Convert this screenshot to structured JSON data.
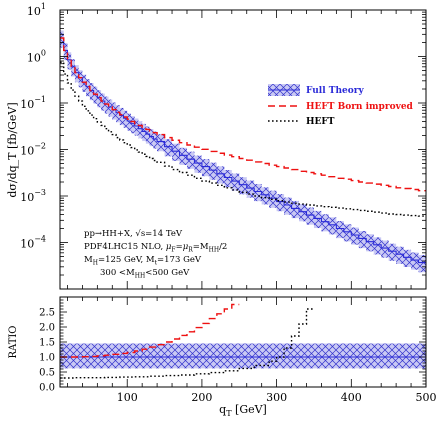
{
  "chart_data": [
    {
      "type": "line",
      "ylabel": "dσ/dq_T [fb/GeV]",
      "xlim": [
        10,
        500
      ],
      "ylim_log10": [
        -5,
        1
      ],
      "y_ticks": [
        {
          "base": "10",
          "exp": "1",
          "log": 1
        },
        {
          "base": "10",
          "exp": "0",
          "log": 0
        },
        {
          "base": "10",
          "exp": "−1",
          "log": -1
        },
        {
          "base": "10",
          "exp": "−2",
          "log": -2
        },
        {
          "base": "10",
          "exp": "−3",
          "log": -3
        },
        {
          "base": "10",
          "exp": "−4",
          "log": -4
        }
      ],
      "legend": {
        "placement": "top-right",
        "entries": [
          {
            "label": "Full Theory",
            "color": "#2a2ad8"
          },
          {
            "label": "HEFT Born improved",
            "color": "#ee1111"
          },
          {
            "label": "HEFT",
            "color": "#000000"
          }
        ]
      },
      "annotations": [
        {
          "type": "txt",
          "t": "pp→HH+X,    √s=14 TeV"
        },
        {
          "type": "pdf",
          "a": "PDF4LHC15 NLO,  ",
          "mu": "μ",
          "sF": "F",
          "mid": "=",
          "sR": "R",
          "eq": "=M",
          "sHH": "HH",
          "tail": "/2"
        },
        {
          "type": "mass",
          "a": "M",
          "sH": "H",
          "b": "=125 GeV,    M",
          "st": "t",
          "c": "=173 GeV"
        },
        {
          "type": "cut",
          "a": "300 <M",
          "sHH": "HH",
          "b": "<500 GeV"
        }
      ],
      "series": [
        {
          "name": "Full Theory",
          "color": "#2a2ad8",
          "x": [
            10,
            15,
            20,
            25,
            30,
            35,
            40,
            45,
            50,
            55,
            60,
            65,
            70,
            75,
            80,
            85,
            90,
            95,
            100,
            105,
            110,
            115,
            120,
            125,
            130,
            135,
            140,
            150,
            160,
            170,
            180,
            190,
            200,
            210,
            220,
            230,
            240,
            250,
            260,
            270,
            280,
            290,
            300,
            310,
            320,
            330,
            340,
            350,
            360,
            370,
            380,
            390,
            400,
            410,
            420,
            430,
            440,
            450,
            460,
            470,
            480,
            490,
            500
          ],
          "y": [
            2.5,
            1.35,
            0.85,
            0.6,
            0.45,
            0.35,
            0.28,
            0.225,
            0.185,
            0.155,
            0.13,
            0.11,
            0.095,
            0.082,
            0.071,
            0.062,
            0.054,
            0.047,
            0.041,
            0.036,
            0.032,
            0.028,
            0.0245,
            0.0215,
            0.019,
            0.0168,
            0.0148,
            0.0115,
            0.0092,
            0.0075,
            0.0062,
            0.0051,
            0.0043,
            0.0036,
            0.003,
            0.0025,
            0.0021,
            0.00175,
            0.00148,
            0.00125,
            0.00106,
            0.0009,
            0.00076,
            0.00064,
            0.00054,
            0.00046,
            0.00039,
            0.00033,
            0.00028,
            0.00024,
            0.0002,
            0.00017,
            0.000145,
            0.000122,
            0.000104,
            8.9e-05,
            7.6e-05,
            6.5e-05,
            5.6e-05,
            4.8e-05,
            4.2e-05,
            3.7e-05,
            3.2e-05
          ],
          "band_rel_up": 1.45,
          "band_rel_down": 0.62
        },
        {
          "name": "HEFT Born improved",
          "color": "#ee1111",
          "x": [
            10,
            15,
            20,
            25,
            30,
            35,
            40,
            45,
            50,
            55,
            60,
            65,
            70,
            75,
            80,
            85,
            90,
            95,
            100,
            105,
            110,
            115,
            120,
            125,
            130,
            135,
            140,
            150,
            160,
            170,
            180,
            190,
            200,
            210,
            220,
            230,
            240,
            250,
            260,
            270,
            280,
            290,
            300,
            310,
            320,
            330,
            340,
            350,
            360,
            370,
            380,
            390,
            400,
            410,
            420,
            430,
            440,
            450,
            460,
            470,
            480,
            490,
            500
          ],
          "y": [
            2.5,
            1.35,
            0.85,
            0.6,
            0.45,
            0.35,
            0.28,
            0.225,
            0.185,
            0.155,
            0.13,
            0.11,
            0.095,
            0.082,
            0.072,
            0.063,
            0.056,
            0.05,
            0.045,
            0.04,
            0.036,
            0.033,
            0.03,
            0.027,
            0.025,
            0.023,
            0.021,
            0.018,
            0.0158,
            0.014,
            0.0125,
            0.0112,
            0.0101,
            0.0091,
            0.0083,
            0.0076,
            0.007,
            0.0064,
            0.0059,
            0.0054,
            0.005,
            0.0046,
            0.0043,
            0.004,
            0.0037,
            0.0034,
            0.0032,
            0.003,
            0.0028,
            0.0026,
            0.0024,
            0.0023,
            0.00215,
            0.002,
            0.0019,
            0.0018,
            0.0017,
            0.0016,
            0.0015,
            0.00145,
            0.00138,
            0.0013,
            0.00125
          ]
        },
        {
          "name": "HEFT",
          "color": "#000000",
          "x": [
            10,
            15,
            20,
            25,
            30,
            35,
            40,
            45,
            50,
            55,
            60,
            65,
            70,
            75,
            80,
            85,
            90,
            95,
            100,
            105,
            110,
            115,
            120,
            125,
            130,
            135,
            140,
            150,
            160,
            170,
            180,
            190,
            200,
            210,
            220,
            230,
            240,
            250,
            260,
            270,
            280,
            290,
            300,
            310,
            320,
            330,
            340,
            350,
            360,
            370,
            380,
            390,
            400,
            410,
            420,
            430,
            440,
            450,
            460,
            470,
            480,
            490,
            500
          ],
          "y": [
            0.75,
            0.42,
            0.27,
            0.19,
            0.14,
            0.11,
            0.085,
            0.068,
            0.055,
            0.046,
            0.039,
            0.033,
            0.028,
            0.024,
            0.021,
            0.018,
            0.016,
            0.014,
            0.0125,
            0.011,
            0.0098,
            0.0088,
            0.0079,
            0.0071,
            0.0064,
            0.0058,
            0.0053,
            0.0044,
            0.0037,
            0.0032,
            0.0028,
            0.0024,
            0.0021,
            0.0019,
            0.0017,
            0.0015,
            0.00135,
            0.0012,
            0.0011,
            0.001,
            0.00092,
            0.00085,
            0.00079,
            0.00074,
            0.0007,
            0.00067,
            0.00064,
            0.00061,
            0.00059,
            0.00057,
            0.00055,
            0.00053,
            0.00051,
            0.00049,
            0.00047,
            0.00045,
            0.00043,
            0.00041,
            0.0004,
            0.00039,
            0.00038,
            0.00037,
            0.00036
          ]
        }
      ]
    },
    {
      "type": "line",
      "ylabel": "RATIO",
      "xlabel": {
        "main": "q",
        "sub": "T",
        "unit": " [GeV]"
      },
      "xlim": [
        10,
        500
      ],
      "ylim": [
        0,
        3
      ],
      "x_ticks": [
        100,
        200,
        300,
        400,
        500
      ],
      "y_ticks": [
        "0.0",
        "0.5",
        "1.0",
        "1.5",
        "2.0",
        "2.5"
      ],
      "series": [
        {
          "name": "Full Theory",
          "color": "#2a2ad8",
          "x": [
            10,
            500
          ],
          "y": [
            1.0,
            1.0
          ],
          "band_up": 1.45,
          "band_down": 0.62
        },
        {
          "name": "HEFT Born improved",
          "color": "#ee1111",
          "x": [
            10,
            20,
            30,
            40,
            50,
            60,
            70,
            80,
            90,
            100,
            110,
            120,
            130,
            140,
            150,
            160,
            170,
            180,
            190,
            200,
            210,
            220,
            230,
            240,
            250
          ],
          "y": [
            1.0,
            1.0,
            1.0,
            1.01,
            1.02,
            1.04,
            1.06,
            1.09,
            1.12,
            1.15,
            1.2,
            1.26,
            1.33,
            1.41,
            1.5,
            1.6,
            1.72,
            1.84,
            1.98,
            2.12,
            2.28,
            2.44,
            2.6,
            2.75,
            2.92
          ]
        },
        {
          "name": "HEFT",
          "color": "#000000",
          "x": [
            10,
            30,
            50,
            70,
            90,
            110,
            130,
            150,
            170,
            190,
            210,
            230,
            250,
            270,
            290,
            300,
            310,
            320,
            330,
            340,
            350
          ],
          "y": [
            0.3,
            0.31,
            0.31,
            0.32,
            0.33,
            0.34,
            0.36,
            0.38,
            0.4,
            0.44,
            0.48,
            0.54,
            0.62,
            0.72,
            0.86,
            1.0,
            1.3,
            1.7,
            2.1,
            2.6,
            3.0
          ]
        }
      ]
    }
  ]
}
